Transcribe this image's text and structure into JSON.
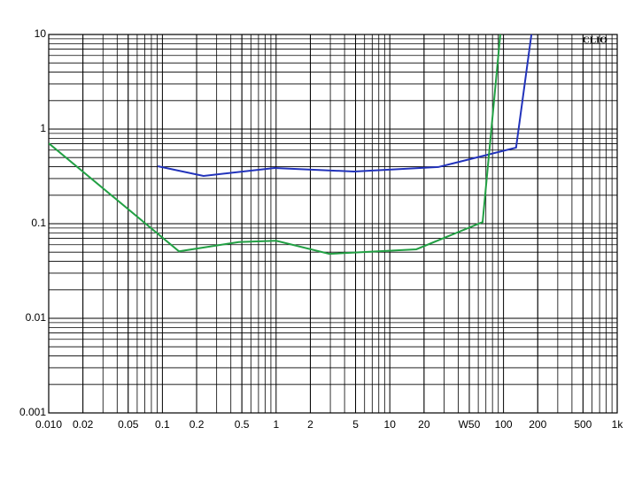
{
  "chart_data": {
    "type": "line",
    "annotation": "CLIO",
    "xscale": "log",
    "yscale": "log",
    "grid": true,
    "minor_grid": true,
    "xlim": [
      0.01,
      1000
    ],
    "ylim": [
      0.001,
      10
    ],
    "xticks": [
      {
        "value": 0.01,
        "label": "0.010"
      },
      0.02,
      0.05,
      0.1,
      0.2,
      0.5,
      1,
      2,
      5,
      10,
      20,
      {
        "value": 50,
        "label": "W50"
      },
      100,
      200,
      500,
      {
        "value": 1000,
        "label": "1k"
      }
    ],
    "yticks": [
      0.001,
      0.01,
      0.1,
      1,
      10
    ],
    "series": [
      {
        "color": "#2233bb",
        "x": [
          0.091,
          0.23,
          0.97,
          4.86,
          26.7,
          129,
          176
        ],
        "values": [
          0.405,
          0.32,
          0.388,
          0.356,
          0.397,
          0.637,
          10
        ]
      },
      {
        "color": "#22a044",
        "x": [
          0.01,
          0.14,
          0.47,
          1,
          2.94,
          17.1,
          65.5,
          93.7
        ],
        "values": [
          0.708,
          0.051,
          0.064,
          0.066,
          0.048,
          0.0536,
          0.104,
          10
        ]
      }
    ]
  }
}
